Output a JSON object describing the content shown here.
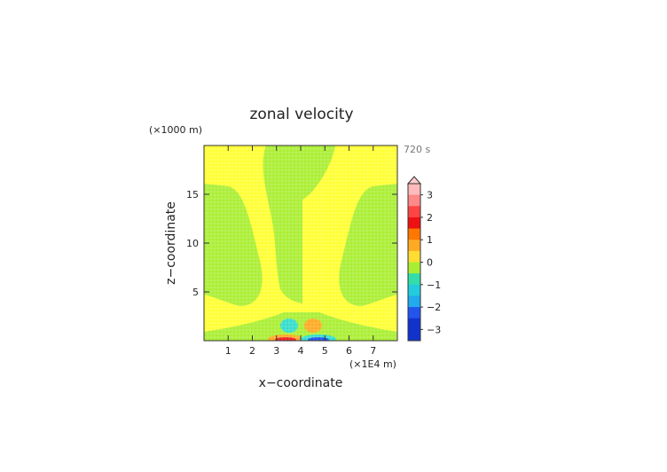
{
  "chart_data": {
    "type": "heatmap",
    "title": "zonal velocity",
    "time_label": "720 s",
    "xlabel": "x−coordinate",
    "ylabel": "z−coordinate",
    "x_unit": "(×1E4 m)",
    "y_unit": "(×1000 m)",
    "x_ticks": [
      "1",
      "2",
      "3",
      "4",
      "5",
      "6",
      "7"
    ],
    "y_ticks": [
      "5",
      "10",
      "15"
    ],
    "xlim": [
      0,
      8
    ],
    "ylim": [
      0,
      20
    ],
    "colorbar": {
      "ticks": [
        "3",
        "2",
        "1",
        "0",
        "−1",
        "−2",
        "−3"
      ],
      "range": [
        -3.5,
        3.5
      ]
    },
    "fields": {
      "background": "~0.2 (yellow, 0 to 0.5)",
      "v_shape_and_margins": "~-0.2 (green, -0.5 to 0)",
      "left_eddy_near_x3.5": "~-0.8 (teal)",
      "right_eddy_near_x4.4": "~0.8 (orange)",
      "surface_left_of_x4": "positive to ~2 (red)",
      "surface_right_of_x4": "negative to ~-2 (blue)"
    },
    "colors": {
      "yellow": "#ffff33",
      "green": "#aaee33",
      "teal": "#33ddcc",
      "orange": "#ffaa22",
      "red": "#ee2222",
      "blue": "#2255ee"
    }
  }
}
